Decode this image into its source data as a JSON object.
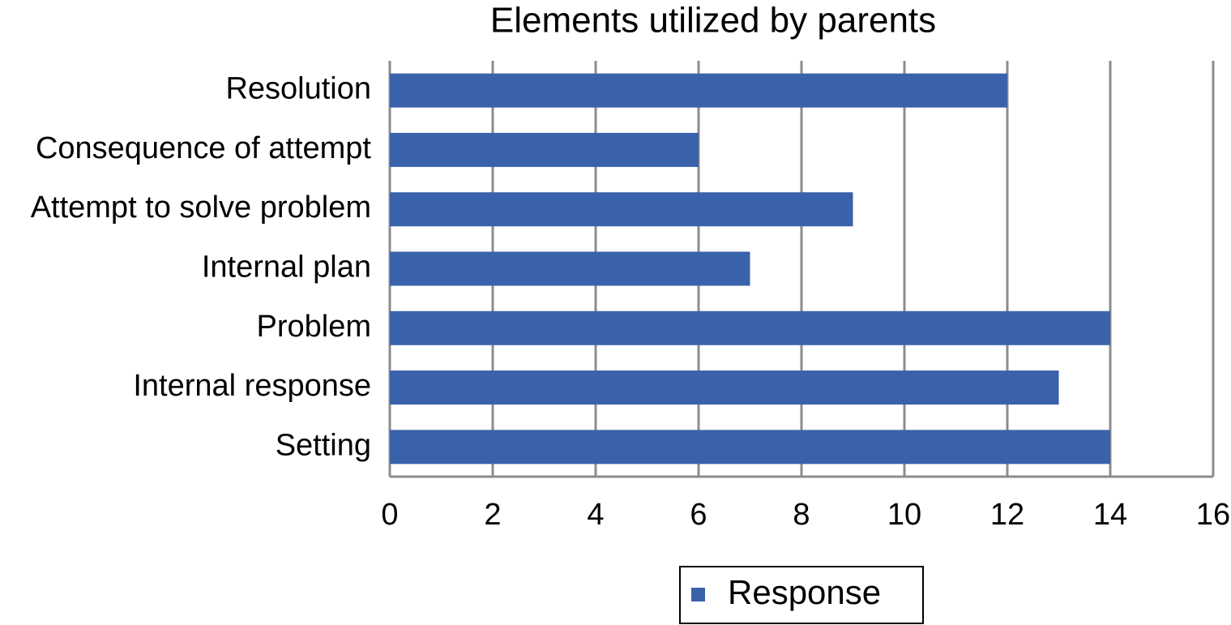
{
  "chart_data": {
    "type": "bar",
    "orientation": "horizontal",
    "title": "Elements utilized by parents",
    "categories": [
      "Resolution",
      "Consequence of attempt",
      "Attempt to solve problem",
      "Internal plan",
      "Problem",
      "Internal response",
      "Setting"
    ],
    "series": [
      {
        "name": "Response",
        "color": "#3a62ab",
        "values": [
          12,
          6,
          9,
          7,
          14,
          13,
          14
        ]
      }
    ],
    "xlim": [
      0,
      16
    ],
    "xticks": [
      0,
      2,
      4,
      6,
      8,
      10,
      12,
      14,
      16
    ],
    "grid": true,
    "legend": "bottom"
  }
}
